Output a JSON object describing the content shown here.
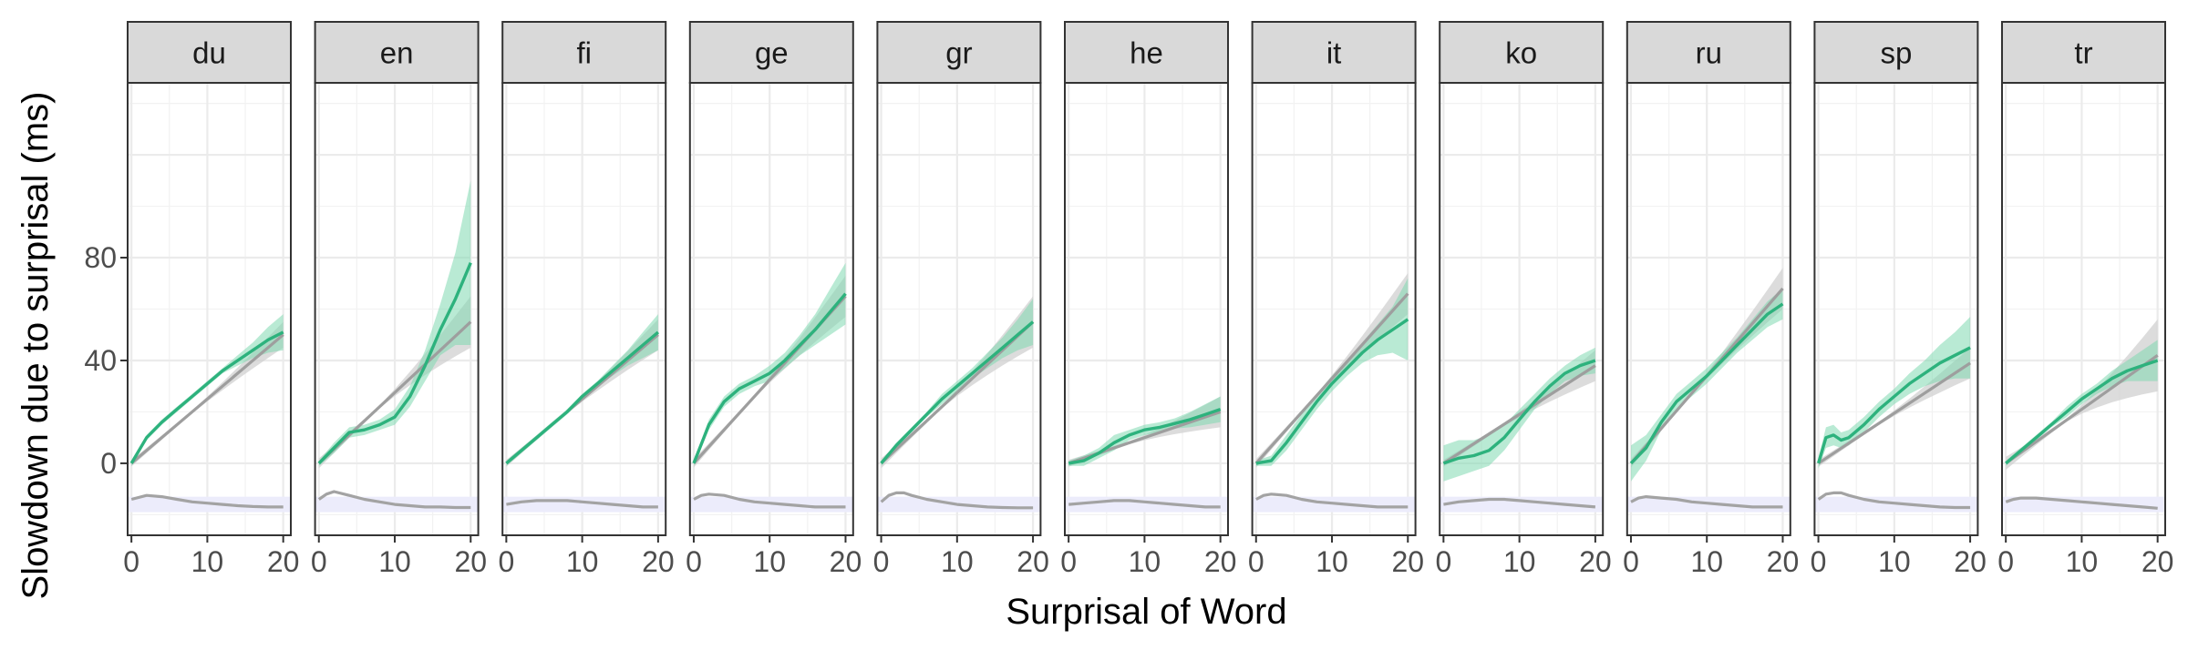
{
  "chart_data": {
    "type": "line",
    "xlabel": "Surprisal of Word",
    "ylabel": "Slowdown due to surprisal (ms)",
    "xlim": [
      -0.5,
      21
    ],
    "ylim": [
      -28,
      148
    ],
    "x_ticks": [
      0,
      10,
      20
    ],
    "x_tick_labels": [
      "0",
      "10",
      "20"
    ],
    "y_ticks": [
      0,
      40,
      80
    ],
    "y_tick_labels": [
      "0",
      "40",
      "80"
    ],
    "grid": true,
    "legend": "none",
    "colors": {
      "fitted": "#2db27d",
      "fitted_band": "#7fd8b0",
      "linear": "#9e9e9e",
      "linear_band": "#d0d0d0",
      "density": "#a3a3a3",
      "density_band": "#ececfb",
      "strip_fill": "#d9d9d9",
      "grid": "#ebebeb"
    },
    "facets": [
      {
        "label": "du",
        "smooth": [
          [
            0,
            0
          ],
          [
            2,
            10
          ],
          [
            4,
            16
          ],
          [
            6,
            21
          ],
          [
            8,
            26
          ],
          [
            10,
            31
          ],
          [
            12,
            36
          ],
          [
            14,
            40
          ],
          [
            16,
            44
          ],
          [
            18,
            48
          ],
          [
            20,
            51
          ]
        ],
        "smooth_ci": [
          1,
          1,
          1,
          1,
          1,
          1,
          1,
          2,
          3,
          5,
          7
        ],
        "linear_end": 50,
        "linear_ci_end": 5,
        "density": [
          [
            0,
            -14
          ],
          [
            2,
            -12.5
          ],
          [
            4,
            -13
          ],
          [
            6,
            -14
          ],
          [
            8,
            -15
          ],
          [
            10,
            -15.5
          ],
          [
            12,
            -16
          ],
          [
            14,
            -16.5
          ],
          [
            16,
            -16.8
          ],
          [
            18,
            -17
          ],
          [
            20,
            -17
          ]
        ]
      },
      {
        "label": "en",
        "smooth": [
          [
            0,
            0
          ],
          [
            2,
            6
          ],
          [
            4,
            12
          ],
          [
            6,
            13
          ],
          [
            8,
            15
          ],
          [
            10,
            18
          ],
          [
            12,
            26
          ],
          [
            14,
            38
          ],
          [
            16,
            52
          ],
          [
            18,
            64
          ],
          [
            20,
            78
          ]
        ],
        "smooth_ci": [
          1,
          2,
          2,
          2,
          2,
          3,
          4,
          6,
          10,
          18,
          32
        ],
        "linear_end": 55,
        "linear_ci_end": 10,
        "density": [
          [
            0,
            -14
          ],
          [
            1,
            -12
          ],
          [
            2,
            -11
          ],
          [
            4,
            -12.5
          ],
          [
            6,
            -14
          ],
          [
            8,
            -15
          ],
          [
            10,
            -16
          ],
          [
            12,
            -16.5
          ],
          [
            14,
            -17
          ],
          [
            16,
            -17
          ],
          [
            18,
            -17.2
          ],
          [
            20,
            -17.2
          ]
        ]
      },
      {
        "label": "fi",
        "smooth": [
          [
            0,
            0
          ],
          [
            2,
            5
          ],
          [
            4,
            10
          ],
          [
            6,
            15
          ],
          [
            8,
            20
          ],
          [
            10,
            26
          ],
          [
            12,
            31
          ],
          [
            14,
            36
          ],
          [
            16,
            41
          ],
          [
            18,
            46
          ],
          [
            20,
            51
          ]
        ],
        "smooth_ci": [
          1,
          1,
          1,
          1,
          1,
          1,
          1,
          2,
          3,
          5,
          7
        ],
        "linear_end": 50,
        "linear_ci_end": 6,
        "density": [
          [
            0,
            -16
          ],
          [
            2,
            -15
          ],
          [
            4,
            -14.5
          ],
          [
            6,
            -14.5
          ],
          [
            8,
            -14.5
          ],
          [
            10,
            -15
          ],
          [
            12,
            -15.5
          ],
          [
            14,
            -16
          ],
          [
            16,
            -16.5
          ],
          [
            18,
            -17
          ],
          [
            20,
            -17
          ]
        ]
      },
      {
        "label": "ge",
        "smooth": [
          [
            0,
            0
          ],
          [
            2,
            15
          ],
          [
            4,
            24
          ],
          [
            6,
            29
          ],
          [
            8,
            32
          ],
          [
            10,
            35
          ],
          [
            12,
            40
          ],
          [
            14,
            46
          ],
          [
            16,
            52
          ],
          [
            18,
            59
          ],
          [
            20,
            66
          ]
        ],
        "smooth_ci": [
          1,
          2,
          2,
          2,
          2,
          3,
          3,
          4,
          6,
          9,
          12
        ],
        "linear_end": 65,
        "linear_ci_end": 8,
        "density": [
          [
            0,
            -14
          ],
          [
            1,
            -12.5
          ],
          [
            2,
            -12
          ],
          [
            4,
            -12.5
          ],
          [
            6,
            -14
          ],
          [
            8,
            -15
          ],
          [
            10,
            -15.5
          ],
          [
            12,
            -16
          ],
          [
            14,
            -16.5
          ],
          [
            16,
            -17
          ],
          [
            18,
            -17
          ],
          [
            20,
            -17
          ]
        ]
      },
      {
        "label": "gr",
        "smooth": [
          [
            0,
            0
          ],
          [
            2,
            7
          ],
          [
            4,
            13
          ],
          [
            6,
            19
          ],
          [
            8,
            25
          ],
          [
            10,
            30
          ],
          [
            12,
            35
          ],
          [
            14,
            40
          ],
          [
            16,
            45
          ],
          [
            18,
            50
          ],
          [
            20,
            55
          ]
        ],
        "smooth_ci": [
          1,
          1,
          1,
          1,
          2,
          2,
          2,
          3,
          4,
          6,
          9
        ],
        "linear_end": 55,
        "linear_ci_end": 10,
        "density": [
          [
            0,
            -15
          ],
          [
            1,
            -12.5
          ],
          [
            2,
            -11.5
          ],
          [
            3,
            -11.5
          ],
          [
            4,
            -12.5
          ],
          [
            6,
            -14
          ],
          [
            8,
            -15
          ],
          [
            10,
            -16
          ],
          [
            12,
            -16.5
          ],
          [
            14,
            -17
          ],
          [
            16,
            -17.2
          ],
          [
            18,
            -17.3
          ],
          [
            20,
            -17.3
          ]
        ]
      },
      {
        "label": "he",
        "smooth": [
          [
            0,
            0
          ],
          [
            2,
            1
          ],
          [
            4,
            4
          ],
          [
            6,
            8
          ],
          [
            8,
            11
          ],
          [
            10,
            13
          ],
          [
            12,
            14
          ],
          [
            14,
            15.5
          ],
          [
            16,
            17
          ],
          [
            18,
            19
          ],
          [
            20,
            21
          ]
        ],
        "smooth_ci": [
          1,
          2,
          2,
          3,
          2,
          2,
          2,
          2,
          3,
          4,
          5
        ],
        "linear_end": 20,
        "linear_ci_end": 6,
        "density": [
          [
            0,
            -16
          ],
          [
            2,
            -15.5
          ],
          [
            4,
            -15
          ],
          [
            6,
            -14.5
          ],
          [
            8,
            -14.5
          ],
          [
            10,
            -15
          ],
          [
            12,
            -15.5
          ],
          [
            14,
            -16
          ],
          [
            16,
            -16.5
          ],
          [
            18,
            -17
          ],
          [
            20,
            -17
          ]
        ]
      },
      {
        "label": "it",
        "smooth": [
          [
            0,
            0
          ],
          [
            2,
            1
          ],
          [
            4,
            8
          ],
          [
            6,
            16
          ],
          [
            8,
            24
          ],
          [
            10,
            31
          ],
          [
            12,
            37
          ],
          [
            14,
            43
          ],
          [
            16,
            48
          ],
          [
            18,
            52
          ],
          [
            20,
            56
          ]
        ],
        "smooth_ci": [
          1,
          2,
          3,
          3,
          3,
          3,
          3,
          4,
          6,
          9,
          16
        ],
        "linear_end": 66,
        "linear_ci_end": 8,
        "density": [
          [
            0,
            -14
          ],
          [
            1,
            -12.5
          ],
          [
            2,
            -12
          ],
          [
            4,
            -12.5
          ],
          [
            6,
            -14
          ],
          [
            8,
            -15
          ],
          [
            10,
            -15.5
          ],
          [
            12,
            -16
          ],
          [
            14,
            -16.5
          ],
          [
            16,
            -17
          ],
          [
            18,
            -17
          ],
          [
            20,
            -17
          ]
        ]
      },
      {
        "label": "ko",
        "smooth": [
          [
            0,
            0
          ],
          [
            2,
            2
          ],
          [
            4,
            3
          ],
          [
            6,
            5
          ],
          [
            8,
            10
          ],
          [
            10,
            17
          ],
          [
            12,
            24
          ],
          [
            14,
            30
          ],
          [
            16,
            35
          ],
          [
            18,
            38
          ],
          [
            20,
            40
          ]
        ],
        "smooth_ci": [
          7,
          7,
          6,
          6,
          5,
          4,
          3,
          3,
          3,
          4,
          5
        ],
        "linear_end": 38,
        "linear_ci_end": 6,
        "density": [
          [
            0,
            -16
          ],
          [
            2,
            -15
          ],
          [
            4,
            -14.5
          ],
          [
            6,
            -14
          ],
          [
            8,
            -14
          ],
          [
            10,
            -14.5
          ],
          [
            12,
            -15
          ],
          [
            14,
            -15.5
          ],
          [
            16,
            -16
          ],
          [
            18,
            -16.5
          ],
          [
            20,
            -17
          ]
        ]
      },
      {
        "label": "ru",
        "smooth": [
          [
            0,
            0
          ],
          [
            2,
            6
          ],
          [
            4,
            16
          ],
          [
            6,
            24
          ],
          [
            8,
            29
          ],
          [
            10,
            34
          ],
          [
            12,
            40
          ],
          [
            14,
            46
          ],
          [
            16,
            52
          ],
          [
            18,
            58
          ],
          [
            20,
            62
          ]
        ],
        "smooth_ci": [
          7,
          5,
          3,
          3,
          3,
          3,
          3,
          3,
          4,
          5,
          6
        ],
        "linear_end": 68,
        "linear_ci_end": 8,
        "density": [
          [
            0,
            -15
          ],
          [
            1,
            -13.5
          ],
          [
            2,
            -13
          ],
          [
            4,
            -13.5
          ],
          [
            6,
            -14
          ],
          [
            8,
            -15
          ],
          [
            10,
            -15.5
          ],
          [
            12,
            -16
          ],
          [
            14,
            -16.5
          ],
          [
            16,
            -17
          ],
          [
            18,
            -17
          ],
          [
            20,
            -17
          ]
        ]
      },
      {
        "label": "sp",
        "smooth": [
          [
            0,
            0
          ],
          [
            1,
            10
          ],
          [
            2,
            11
          ],
          [
            3,
            9
          ],
          [
            4,
            10
          ],
          [
            6,
            15
          ],
          [
            8,
            21
          ],
          [
            10,
            26
          ],
          [
            12,
            31
          ],
          [
            14,
            35
          ],
          [
            16,
            39
          ],
          [
            18,
            42
          ],
          [
            20,
            45
          ]
        ],
        "smooth_ci": [
          2,
          4,
          4,
          3,
          3,
          3,
          3,
          3,
          4,
          5,
          7,
          9,
          12
        ],
        "linear_end": 39,
        "linear_ci_end": 6,
        "density": [
          [
            0,
            -14
          ],
          [
            1,
            -12
          ],
          [
            2,
            -11.5
          ],
          [
            3,
            -11.5
          ],
          [
            4,
            -12.5
          ],
          [
            6,
            -14
          ],
          [
            8,
            -15
          ],
          [
            10,
            -15.5
          ],
          [
            12,
            -16
          ],
          [
            14,
            -16.5
          ],
          [
            16,
            -17
          ],
          [
            18,
            -17.2
          ],
          [
            20,
            -17.2
          ]
        ]
      },
      {
        "label": "tr",
        "smooth": [
          [
            0,
            0
          ],
          [
            2,
            5
          ],
          [
            4,
            10
          ],
          [
            6,
            15
          ],
          [
            8,
            20
          ],
          [
            10,
            25
          ],
          [
            12,
            29
          ],
          [
            14,
            33
          ],
          [
            16,
            36
          ],
          [
            18,
            38
          ],
          [
            20,
            40
          ]
        ],
        "smooth_ci": [
          1,
          1,
          1,
          1,
          2,
          2,
          2,
          3,
          4,
          6,
          8
        ],
        "linear_end": 42,
        "linear_ci_end": 14,
        "density": [
          [
            0,
            -15
          ],
          [
            1,
            -14
          ],
          [
            2,
            -13.5
          ],
          [
            4,
            -13.5
          ],
          [
            6,
            -14
          ],
          [
            8,
            -14.5
          ],
          [
            10,
            -15
          ],
          [
            12,
            -15.5
          ],
          [
            14,
            -16
          ],
          [
            16,
            -16.5
          ],
          [
            18,
            -17
          ],
          [
            20,
            -17.5
          ]
        ]
      }
    ]
  }
}
